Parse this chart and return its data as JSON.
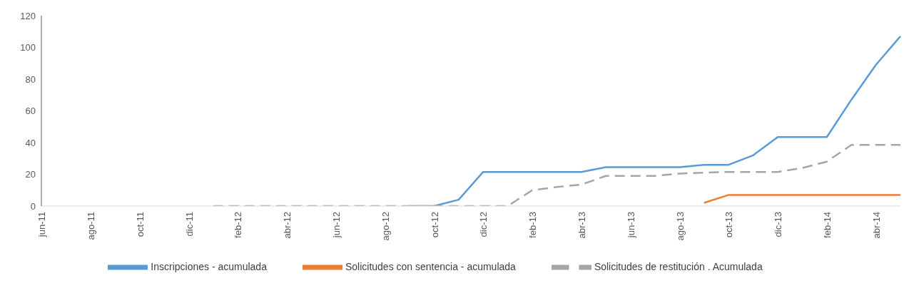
{
  "chart_data": {
    "type": "line",
    "categories": [
      "jun-11",
      null,
      "ago-11",
      null,
      "oct-11",
      null,
      "dic-11",
      null,
      "feb-12",
      null,
      "abr-12",
      null,
      "jun-12",
      null,
      "ago-12",
      null,
      "oct-12",
      null,
      "dic-12",
      null,
      "feb-13",
      null,
      "abr-13",
      null,
      "jun-13",
      null,
      "ago-13",
      null,
      "oct-13",
      null,
      "dic-13",
      null,
      "feb-14",
      null,
      "abr-14",
      null
    ],
    "series": [
      {
        "name": "Inscripciones - acumulada",
        "color": "#5b9bd5",
        "line_style": "solid",
        "values": [
          null,
          null,
          null,
          null,
          null,
          null,
          null,
          null,
          null,
          null,
          null,
          null,
          null,
          null,
          null,
          0,
          0,
          4,
          21.5,
          21.5,
          21.5,
          21.5,
          21.5,
          24.5,
          24.5,
          24.5,
          24.5,
          26,
          26,
          32,
          43.5,
          43.5,
          43.5,
          67,
          89,
          107
        ]
      },
      {
        "name": "Solicitudes con sentencia - acumulada",
        "color": "#ed7d31",
        "line_style": "solid",
        "values": [
          null,
          null,
          null,
          null,
          null,
          null,
          null,
          null,
          null,
          null,
          null,
          null,
          null,
          null,
          null,
          null,
          null,
          null,
          null,
          null,
          null,
          null,
          null,
          null,
          null,
          null,
          null,
          2,
          7,
          7,
          7,
          7,
          7,
          7,
          7,
          7
        ]
      },
      {
        "name": "Solicitudes de restitución . Acumulada",
        "color": "#a5a5a5",
        "line_style": "dashed",
        "values": [
          null,
          null,
          null,
          null,
          null,
          null,
          null,
          0,
          0,
          0,
          0,
          0,
          0,
          0,
          0,
          0,
          0,
          0,
          0,
          0,
          10,
          12,
          13.5,
          19,
          19,
          19,
          20.5,
          21,
          21.5,
          21.5,
          21.5,
          24,
          28,
          38.5,
          38.5,
          38.5
        ]
      }
    ],
    "ylim": [
      0,
      120
    ],
    "yticks": [
      0,
      20,
      40,
      60,
      80,
      100,
      120
    ],
    "grid": false,
    "legend": "bottom",
    "marker": "none"
  }
}
